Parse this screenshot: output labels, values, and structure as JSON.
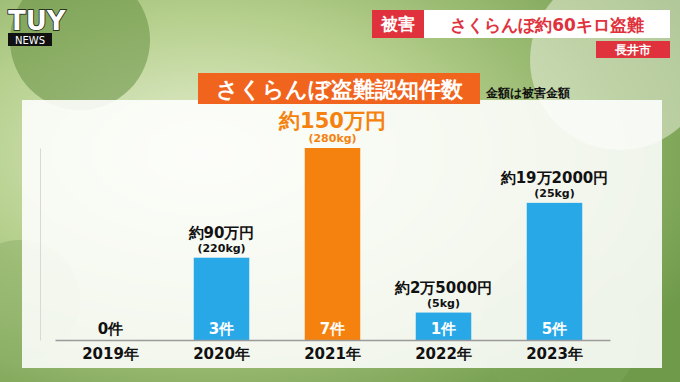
{
  "logo": {
    "text": "TUY",
    "sub": "NEWS"
  },
  "headline": {
    "tag": "被害",
    "text": "さくらんぼ約60キロ盗難",
    "location": "長井市"
  },
  "chart_data": {
    "type": "bar",
    "title": "さくらんぼ盗難認知件数",
    "subtitle": "金額は被害金額",
    "categories": [
      "2019年",
      "2020年",
      "2021年",
      "2022年",
      "2023年"
    ],
    "values": [
      0,
      3,
      7,
      1,
      5
    ],
    "value_labels": [
      "0件",
      "3件",
      "7件",
      "1件",
      "5件"
    ],
    "data_labels": true,
    "colors": [
      "#29a8e8",
      "#29a8e8",
      "#f5820f",
      "#29a8e8",
      "#29a8e8"
    ],
    "annotations": [
      {
        "x": "2020年",
        "text": "約90万円",
        "subtext": "(220kg)"
      },
      {
        "x": "2021年",
        "text": "約150万円",
        "subtext": "(280kg)"
      },
      {
        "x": "2022年",
        "text": "約2万5000円",
        "subtext": "(5kg)"
      },
      {
        "x": "2023年",
        "text": "約19万2000円",
        "subtext": "(25kg)"
      }
    ],
    "ylim": [
      0,
      7
    ],
    "yticks": [],
    "tick_labels": "x",
    "grid": false
  }
}
